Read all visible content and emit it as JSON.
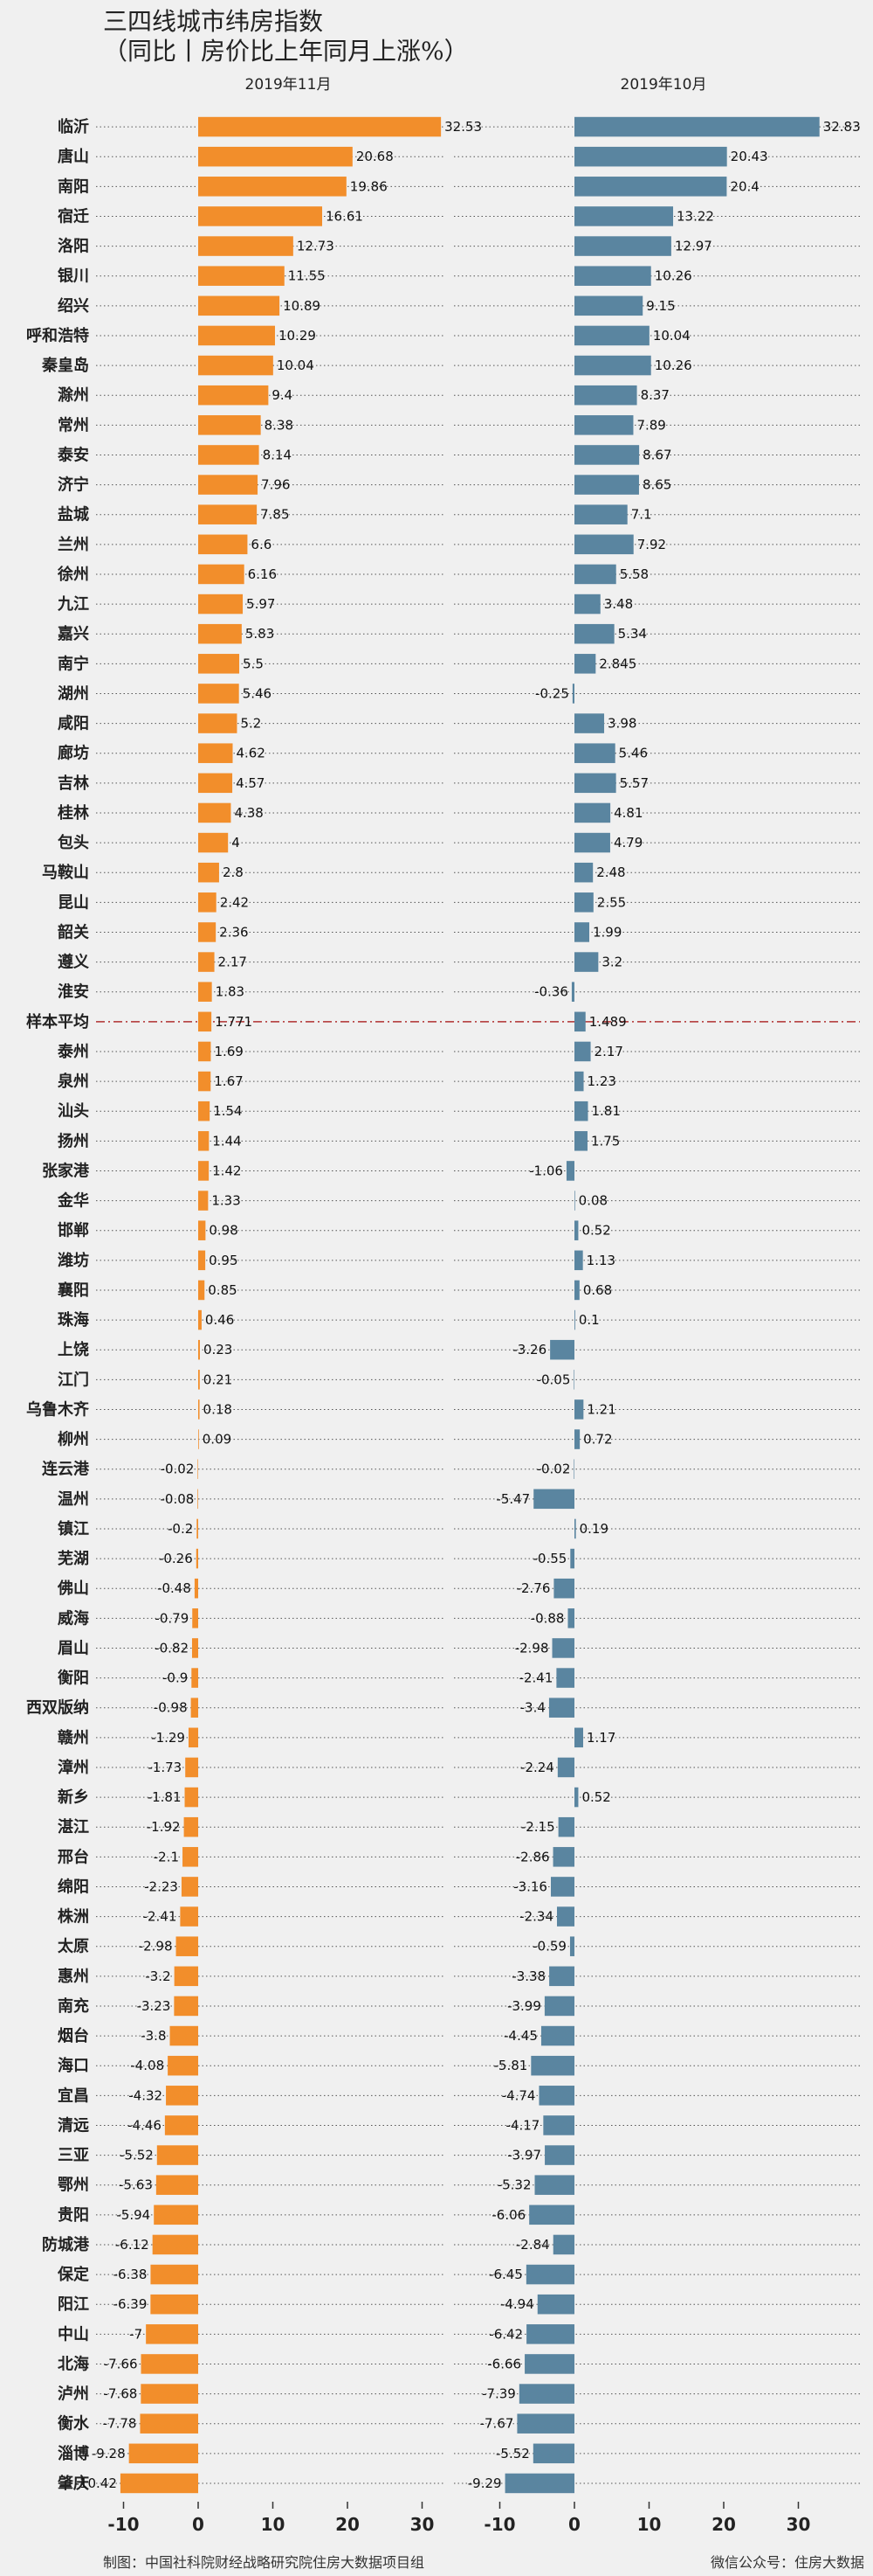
{
  "title": "三四线城市纬房指数",
  "subtitle": "（同比丨房价比上年同月上涨%）",
  "footer_left": "制图：中国社科院财经战略研究院住房大数据项目组",
  "footer_right": "微信公众号：住房大数据",
  "colors": {
    "left": "#f28e2b",
    "right": "#5a85a0",
    "average_line": "#b03030",
    "background": "#f0f0f0"
  },
  "chart_data": {
    "type": "bar",
    "orientation": "horizontal",
    "average_category": "样本平均",
    "categories": [
      "临沂",
      "唐山",
      "南阳",
      "宿迁",
      "洛阳",
      "银川",
      "绍兴",
      "呼和浩特",
      "秦皇岛",
      "滁州",
      "常州",
      "泰安",
      "济宁",
      "盐城",
      "兰州",
      "徐州",
      "九江",
      "嘉兴",
      "南宁",
      "湖州",
      "咸阳",
      "廊坊",
      "吉林",
      "桂林",
      "包头",
      "马鞍山",
      "昆山",
      "韶关",
      "遵义",
      "淮安",
      "样本平均",
      "泰州",
      "泉州",
      "汕头",
      "扬州",
      "张家港",
      "金华",
      "邯郸",
      "潍坊",
      "襄阳",
      "珠海",
      "上饶",
      "江门",
      "乌鲁木齐",
      "柳州",
      "连云港",
      "温州",
      "镇江",
      "芜湖",
      "佛山",
      "威海",
      "眉山",
      "衡阳",
      "西双版纳",
      "赣州",
      "漳州",
      "新乡",
      "湛江",
      "邢台",
      "绵阳",
      "株洲",
      "太原",
      "惠州",
      "南充",
      "烟台",
      "海口",
      "宜昌",
      "清远",
      "三亚",
      "鄂州",
      "贵阳",
      "防城港",
      "保定",
      "阳江",
      "中山",
      "北海",
      "泸州",
      "衡水",
      "淄博",
      "肇庆"
    ],
    "series": [
      {
        "name": "2019年11月",
        "values": [
          32.53,
          20.68,
          19.86,
          16.61,
          12.73,
          11.55,
          10.89,
          10.29,
          10.04,
          9.4,
          8.38,
          8.14,
          7.96,
          7.85,
          6.6,
          6.16,
          5.97,
          5.83,
          5.5,
          5.46,
          5.2,
          4.62,
          4.57,
          4.38,
          4,
          2.8,
          2.42,
          2.36,
          2.17,
          1.83,
          1.771,
          1.69,
          1.67,
          1.54,
          1.44,
          1.42,
          1.33,
          0.98,
          0.95,
          0.85,
          0.46,
          0.23,
          0.21,
          0.18,
          0.09,
          -0.02,
          -0.08,
          -0.2,
          -0.26,
          -0.48,
          -0.79,
          -0.82,
          -0.9,
          -0.98,
          -1.29,
          -1.73,
          -1.81,
          -1.92,
          -2.1,
          -2.23,
          -2.41,
          -2.98,
          -3.2,
          -3.23,
          -3.8,
          -4.08,
          -4.32,
          -4.46,
          -5.52,
          -5.63,
          -5.94,
          -6.12,
          -6.38,
          -6.39,
          -7,
          -7.66,
          -7.68,
          -7.78,
          -9.28,
          -10.42
        ]
      },
      {
        "name": "2019年10月",
        "values": [
          32.83,
          20.43,
          20.4,
          13.22,
          12.97,
          10.26,
          9.15,
          10.04,
          10.26,
          8.37,
          7.89,
          8.67,
          8.65,
          7.1,
          7.92,
          5.58,
          3.48,
          5.34,
          2.845,
          -0.25,
          3.98,
          5.46,
          5.57,
          4.81,
          4.79,
          2.48,
          2.55,
          1.99,
          3.2,
          -0.36,
          1.489,
          2.17,
          1.23,
          1.81,
          1.75,
          -1.06,
          0.08,
          0.52,
          1.13,
          0.68,
          0.1,
          -3.26,
          -0.05,
          1.21,
          0.72,
          -0.02,
          -5.47,
          0.19,
          -0.55,
          -2.76,
          -0.88,
          -2.98,
          -2.41,
          -3.4,
          1.17,
          -2.24,
          0.52,
          -2.15,
          -2.86,
          -3.16,
          -2.34,
          -0.59,
          -3.38,
          -3.99,
          -4.45,
          -5.81,
          -4.74,
          -4.17,
          -3.97,
          -5.32,
          -6.06,
          -2.84,
          -6.45,
          -4.94,
          -6.42,
          -6.66,
          -7.39,
          -7.67,
          -5.52,
          -9.29
        ]
      }
    ],
    "xticks": [
      -10,
      0,
      10,
      20,
      30
    ],
    "xlim": [
      -11.5,
      34.5
    ],
    "grid": "dotted row guides"
  }
}
